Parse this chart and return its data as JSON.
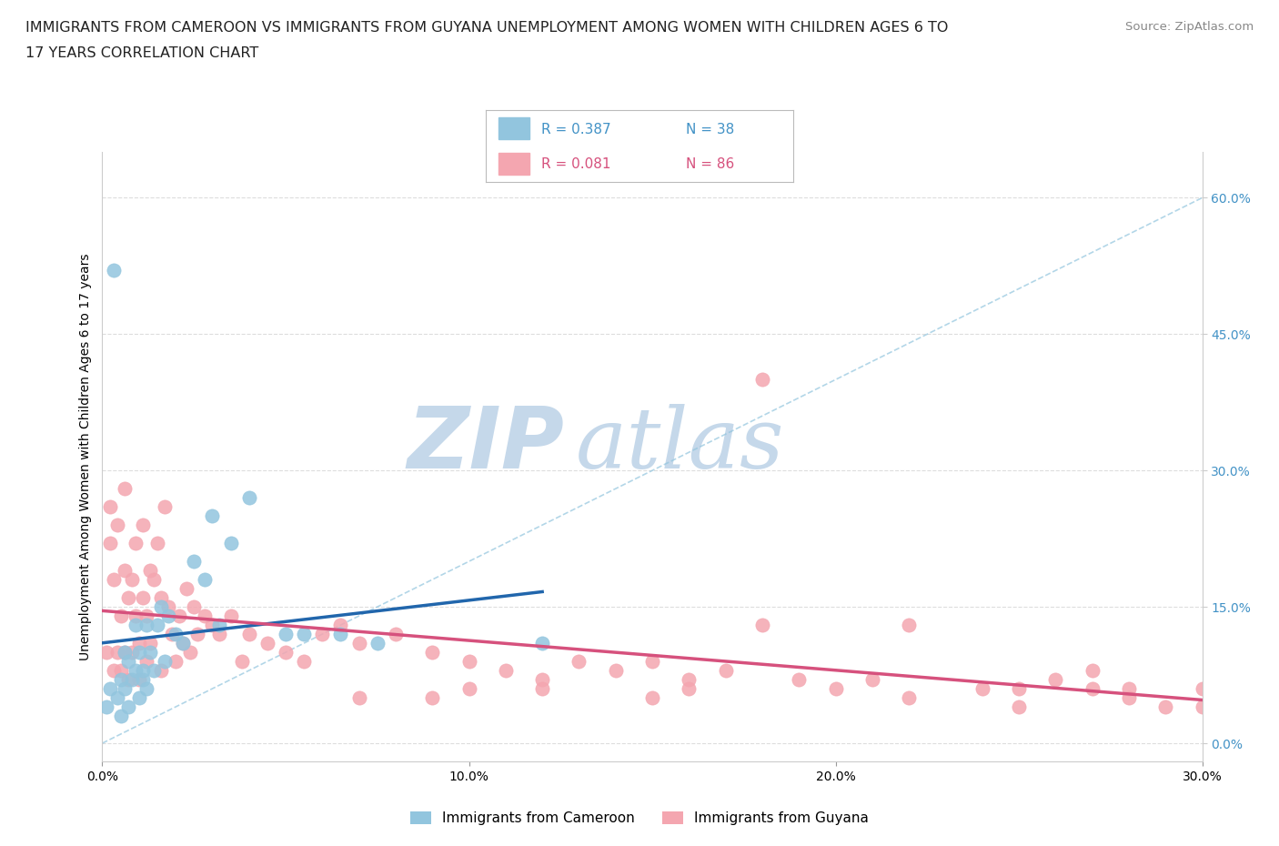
{
  "title_line1": "IMMIGRANTS FROM CAMEROON VS IMMIGRANTS FROM GUYANA UNEMPLOYMENT AMONG WOMEN WITH CHILDREN AGES 6 TO",
  "title_line2": "17 YEARS CORRELATION CHART",
  "source_text": "Source: ZipAtlas.com",
  "ylabel": "Unemployment Among Women with Children Ages 6 to 17 years",
  "xlim": [
    0.0,
    0.3
  ],
  "ylim": [
    -0.02,
    0.65
  ],
  "xtick_vals": [
    0.0,
    0.1,
    0.2,
    0.3
  ],
  "ytick_right_vals": [
    0.0,
    0.15,
    0.3,
    0.45,
    0.6
  ],
  "legend_r1": "R = 0.387",
  "legend_n1": "N = 38",
  "legend_r2": "R = 0.081",
  "legend_n2": "N = 86",
  "color_cameroon": "#92c5de",
  "color_guyana": "#f4a6b0",
  "color_trendline_cameroon": "#2166ac",
  "color_trendline_guyana": "#d6517d",
  "color_diagonal": "#92c5de",
  "watermark_zip": "ZIP",
  "watermark_atlas": "atlas",
  "watermark_color_zip": "#c5d8ea",
  "watermark_color_atlas": "#c5d8ea",
  "background_color": "#ffffff",
  "cameroon_x": [
    0.001,
    0.002,
    0.003,
    0.004,
    0.005,
    0.005,
    0.006,
    0.006,
    0.007,
    0.007,
    0.008,
    0.009,
    0.009,
    0.01,
    0.01,
    0.011,
    0.011,
    0.012,
    0.012,
    0.013,
    0.014,
    0.015,
    0.016,
    0.017,
    0.018,
    0.02,
    0.022,
    0.025,
    0.028,
    0.03,
    0.032,
    0.035,
    0.04,
    0.05,
    0.055,
    0.065,
    0.075,
    0.12
  ],
  "cameroon_y": [
    0.04,
    0.06,
    0.52,
    0.05,
    0.07,
    0.03,
    0.06,
    0.1,
    0.04,
    0.09,
    0.07,
    0.08,
    0.13,
    0.05,
    0.1,
    0.07,
    0.08,
    0.13,
    0.06,
    0.1,
    0.08,
    0.13,
    0.15,
    0.09,
    0.14,
    0.12,
    0.11,
    0.2,
    0.18,
    0.25,
    0.13,
    0.22,
    0.27,
    0.12,
    0.12,
    0.12,
    0.11,
    0.11
  ],
  "guyana_x": [
    0.001,
    0.002,
    0.002,
    0.003,
    0.003,
    0.004,
    0.004,
    0.005,
    0.005,
    0.006,
    0.006,
    0.006,
    0.007,
    0.007,
    0.008,
    0.008,
    0.009,
    0.009,
    0.01,
    0.01,
    0.011,
    0.011,
    0.012,
    0.012,
    0.013,
    0.013,
    0.014,
    0.015,
    0.016,
    0.016,
    0.017,
    0.018,
    0.019,
    0.02,
    0.021,
    0.022,
    0.023,
    0.024,
    0.025,
    0.026,
    0.028,
    0.03,
    0.032,
    0.035,
    0.038,
    0.04,
    0.045,
    0.05,
    0.055,
    0.06,
    0.065,
    0.07,
    0.08,
    0.09,
    0.1,
    0.11,
    0.12,
    0.13,
    0.14,
    0.15,
    0.16,
    0.17,
    0.18,
    0.19,
    0.2,
    0.21,
    0.22,
    0.24,
    0.25,
    0.26,
    0.27,
    0.28,
    0.29,
    0.3,
    0.18,
    0.22,
    0.25,
    0.27,
    0.12,
    0.07,
    0.09,
    0.1,
    0.15,
    0.16,
    0.28,
    0.3
  ],
  "guyana_y": [
    0.1,
    0.22,
    0.26,
    0.18,
    0.08,
    0.24,
    0.1,
    0.14,
    0.08,
    0.19,
    0.1,
    0.28,
    0.07,
    0.16,
    0.18,
    0.1,
    0.14,
    0.22,
    0.11,
    0.07,
    0.16,
    0.24,
    0.09,
    0.14,
    0.11,
    0.19,
    0.18,
    0.22,
    0.16,
    0.08,
    0.26,
    0.15,
    0.12,
    0.09,
    0.14,
    0.11,
    0.17,
    0.1,
    0.15,
    0.12,
    0.14,
    0.13,
    0.12,
    0.14,
    0.09,
    0.12,
    0.11,
    0.1,
    0.09,
    0.12,
    0.13,
    0.11,
    0.12,
    0.1,
    0.09,
    0.08,
    0.07,
    0.09,
    0.08,
    0.09,
    0.07,
    0.08,
    0.13,
    0.07,
    0.06,
    0.07,
    0.05,
    0.06,
    0.04,
    0.07,
    0.06,
    0.05,
    0.04,
    0.06,
    0.4,
    0.13,
    0.06,
    0.08,
    0.06,
    0.05,
    0.05,
    0.06,
    0.05,
    0.06,
    0.06,
    0.04
  ]
}
